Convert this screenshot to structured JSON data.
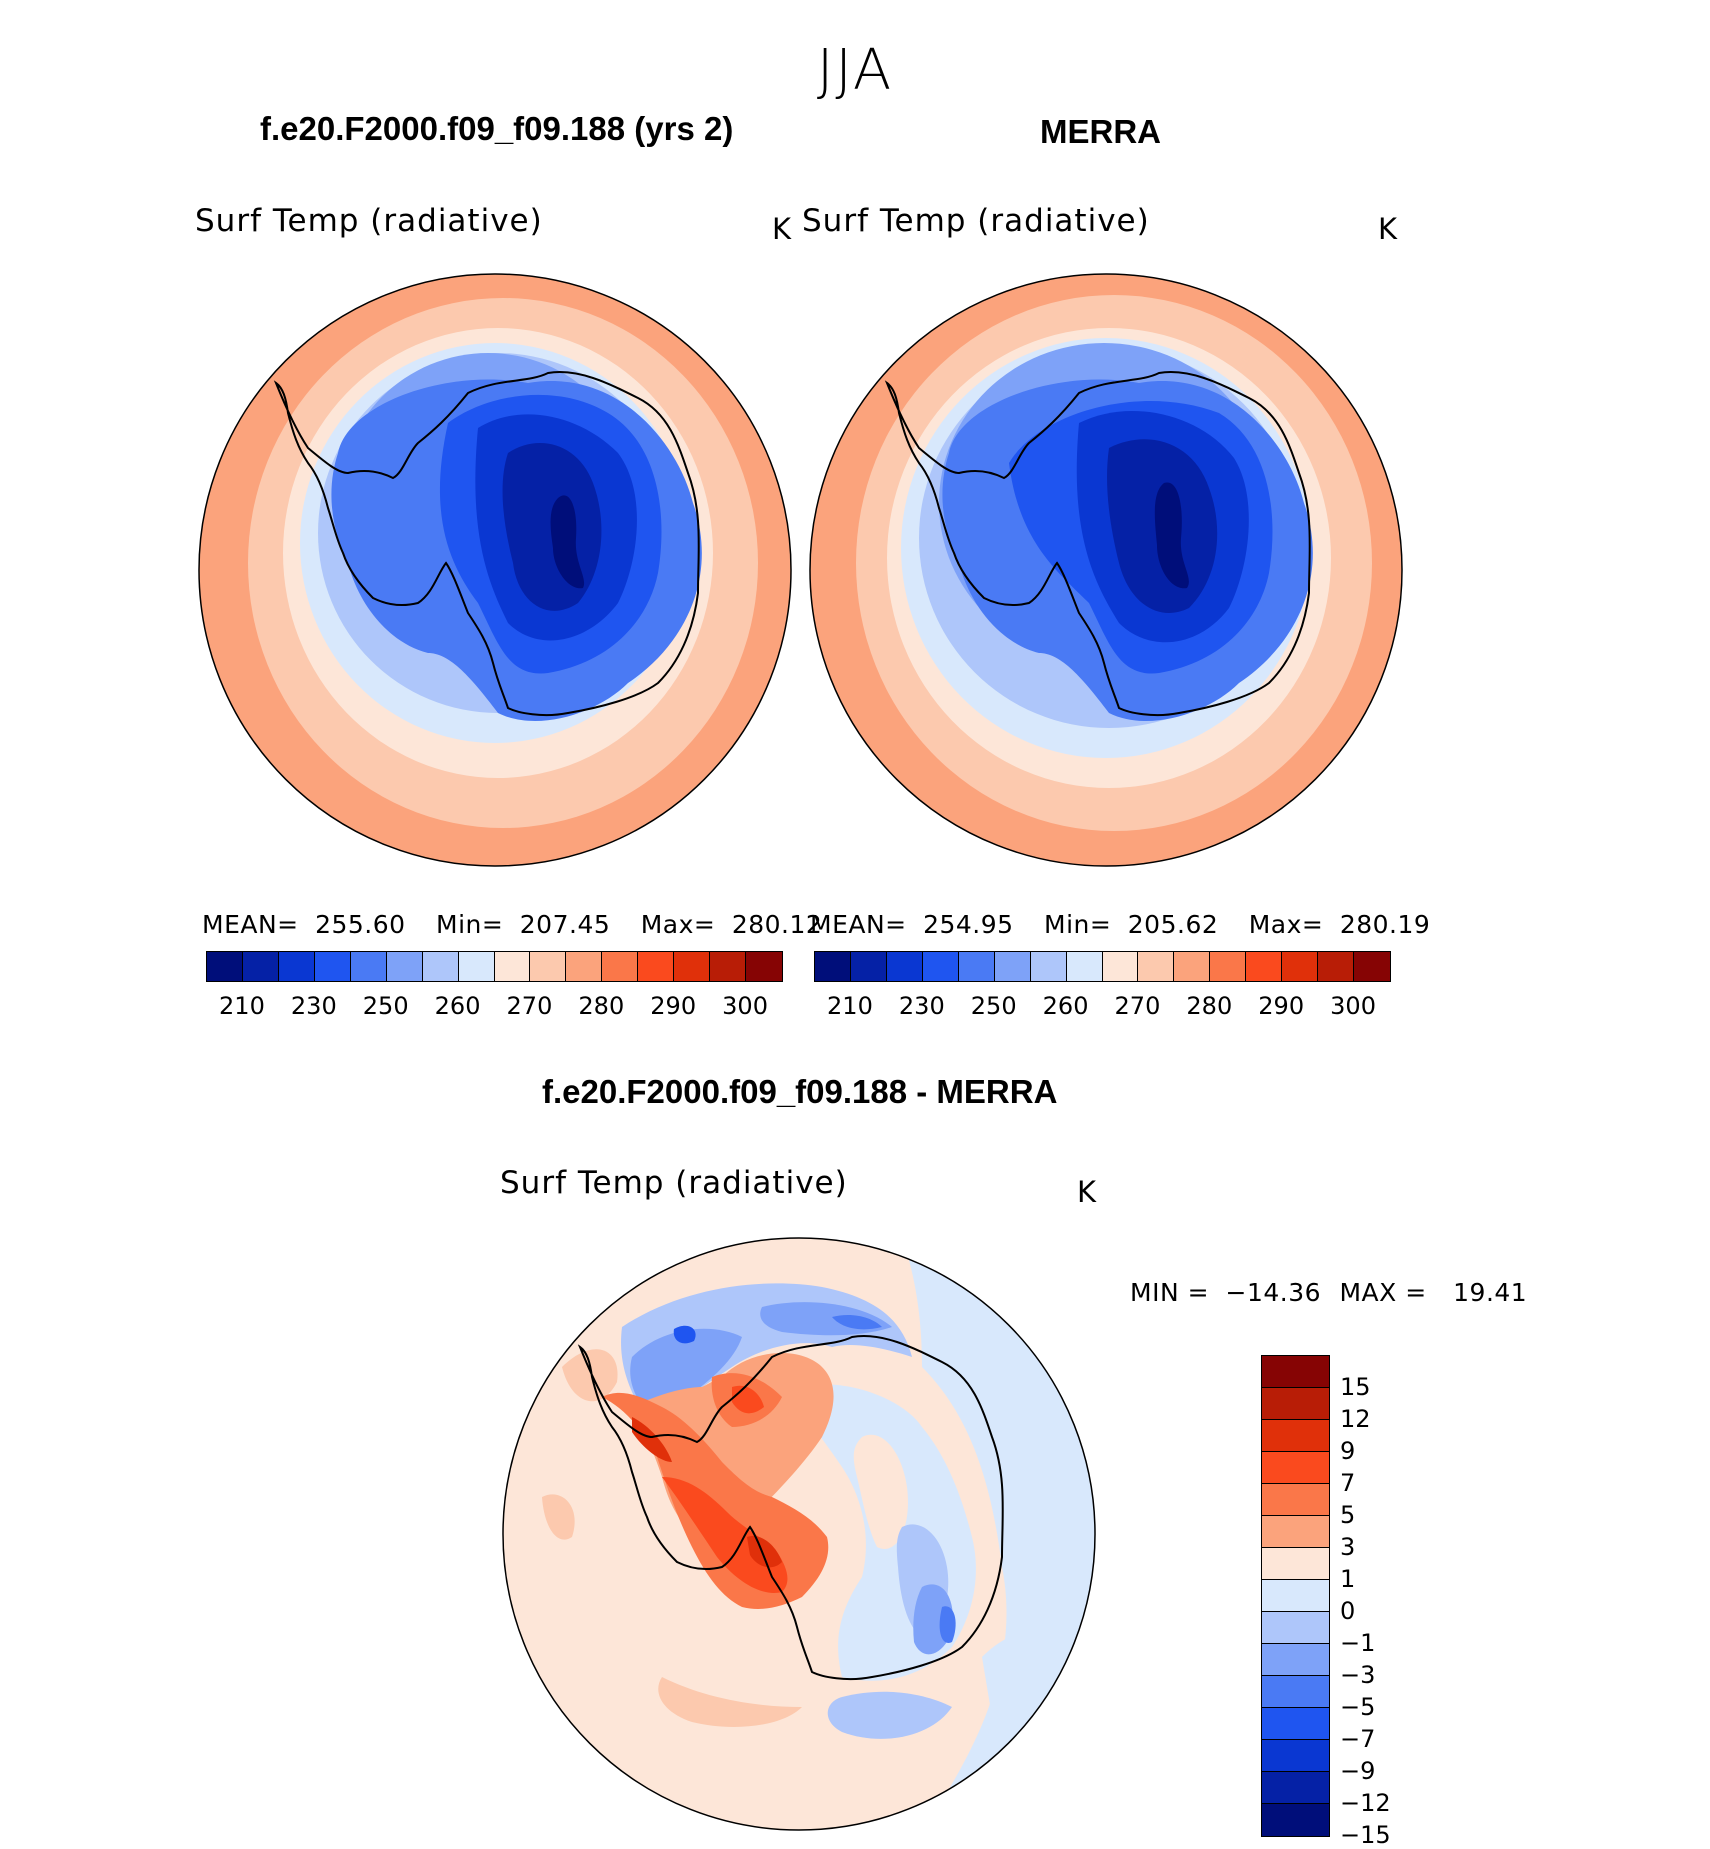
{
  "figure": {
    "season": "JJA"
  },
  "panels": [
    {
      "title": "f.e20.F2000.f09_f09.188 (yrs 2)",
      "variable": "Surf Temp (radiative)",
      "units": "K",
      "stats": {
        "mean_label": "MEAN=",
        "mean": "255.60",
        "min_label": "Min=",
        "min": "207.45",
        "max_label": "Max=",
        "max": "280.12"
      }
    },
    {
      "title": "MERRA",
      "variable": "Surf Temp (radiative)",
      "units": "K",
      "stats": {
        "mean_label": "MEAN=",
        "mean": "254.95",
        "min_label": "Min=",
        "min": "205.62",
        "max_label": "Max=",
        "max": "280.19"
      }
    },
    {
      "title": "f.e20.F2000.f09_f09.188 - MERRA",
      "variable": "Surf Temp (radiative)",
      "units": "K",
      "stats": {
        "min_label": "MIN =",
        "min": "−14.36",
        "max_label": "MAX =",
        "max": "19.41"
      }
    }
  ],
  "colorbars": {
    "abs": {
      "colors": [
        "#000e7a",
        "#0521a6",
        "#0a37d2",
        "#1f55f0",
        "#4a7af4",
        "#7ea2f8",
        "#aec6fa",
        "#d8e8fc",
        "#fde6d8",
        "#fcc9ae",
        "#fba37c",
        "#fa7749",
        "#fa4a1e",
        "#e0300a",
        "#b81d06",
        "#860404"
      ],
      "ticks": [
        "210",
        "230",
        "250",
        "260",
        "270",
        "280",
        "290",
        "300"
      ]
    },
    "diff": {
      "colors": [
        "#860404",
        "#b81d06",
        "#e0300a",
        "#fa4a1e",
        "#fa7749",
        "#fba37c",
        "#fde6d8",
        "#d8e8fc",
        "#aec6fa",
        "#7ea2f8",
        "#4a7af4",
        "#1f55f0",
        "#0a37d2",
        "#0521a6",
        "#000e7a"
      ],
      "ticks": [
        "15",
        "12",
        "9",
        "7",
        "5",
        "3",
        "1",
        "0",
        "−1",
        "−3",
        "−5",
        "−7",
        "−9",
        "−12",
        "−15"
      ]
    }
  }
}
